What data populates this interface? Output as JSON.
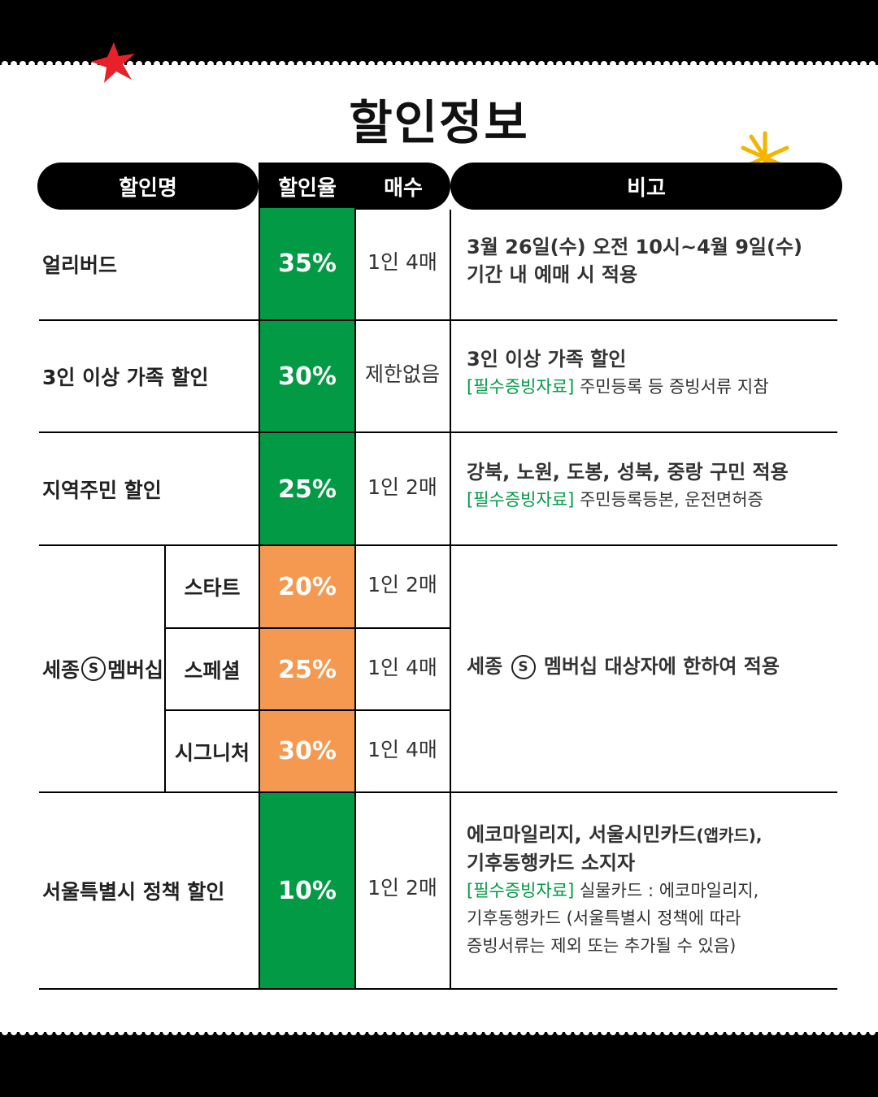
{
  "title": "할인정보",
  "headers": {
    "name": "할인명",
    "rate": "할인율",
    "count": "매수",
    "note": "비고"
  },
  "rows": [
    {
      "name": "얼리버드",
      "rate": "35%",
      "count": "1인 4매",
      "note_line1": "3월 26일(수) 오전 10시~4월 9일(수)",
      "note_line2": "기간 내 예매 시 적용"
    },
    {
      "name": "3인 이상 가족 할인",
      "rate": "30%",
      "count": "제한없음",
      "note_line1": "3인 이상 가족 할인",
      "note_req": "[필수증빙자료]",
      "note_line2": " 주민등록 등 증빙서류 지참"
    },
    {
      "name": "지역주민 할인",
      "rate": "25%",
      "count": "1인 2매",
      "note_line1": "강북, 노원, 도봉, 성북, 중랑 구민 적용",
      "note_req": "[필수증빙자료]",
      "note_line2": " 주민등록등본, 운전면허증"
    },
    {
      "name_prefix": "세종",
      "name_symbol": "S",
      "name_suffix": "멤버십",
      "tiers": [
        {
          "name": "스타트",
          "rate": "20%",
          "count": "1인 2매"
        },
        {
          "name": "스페셜",
          "rate": "25%",
          "count": "1인 4매"
        },
        {
          "name": "시그니처",
          "rate": "30%",
          "count": "1인 4매"
        }
      ],
      "note_prefix": "세종",
      "note_symbol": "S",
      "note_suffix": "멤버십 대상자에 한하여 적용"
    },
    {
      "name": "서울특별시 정책 할인",
      "rate": "10%",
      "count": "1인 2매",
      "note_line1a": "에코마일리지, 서울시민카드",
      "note_line1b": "(앱카드),",
      "note_line2": "기후동행카드 소지자",
      "note_req": "[필수증빙자료]",
      "note_line3": " 실물카드 : 에코마일리지,",
      "note_line4": "기후동행카드 (서울특별시 정책에 따라",
      "note_line5": "증빙서류는 제외 또는 추가될 수 있음)"
    }
  ],
  "colors": {
    "green": "#039a46",
    "orange": "#f4994f",
    "star_red": "#e8202a",
    "spark_yellow": "#f5b400"
  },
  "icons": [
    "star-icon",
    "sparkle-icon"
  ]
}
